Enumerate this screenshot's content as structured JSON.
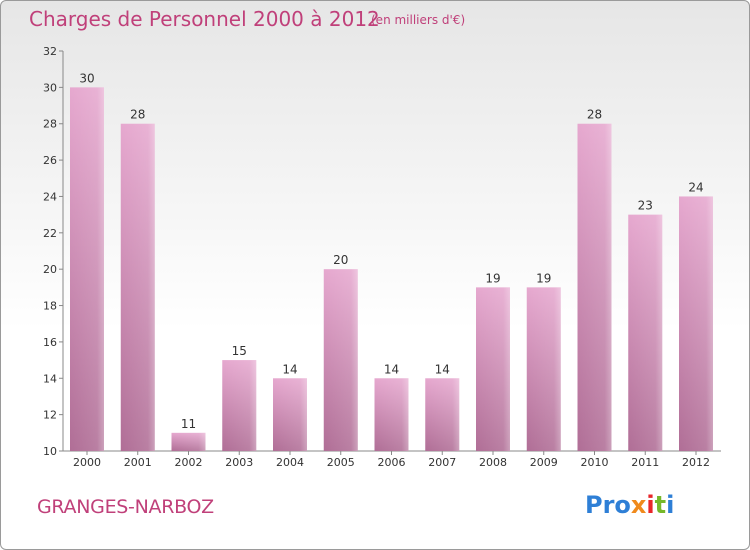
{
  "header": {
    "title": "Charges de Personnel 2000 à 2012",
    "subtitle": "(en milliers d'€)"
  },
  "footer": {
    "commune": "GRANGES-NARBOZ",
    "logo": "Proxiti",
    "logo_parts": [
      "Pro",
      "x",
      "i",
      "t",
      "i"
    ]
  },
  "colors": {
    "bar_top": "#e6a8cf",
    "bar_bottom": "#b06e96",
    "accent": "#c0407a"
  },
  "chart_data": {
    "type": "bar",
    "categories": [
      "2000",
      "2001",
      "2002",
      "2003",
      "2004",
      "2005",
      "2006",
      "2007",
      "2008",
      "2009",
      "2010",
      "2011",
      "2012"
    ],
    "values": [
      30,
      28,
      11,
      15,
      14,
      20,
      14,
      14,
      19,
      19,
      28,
      23,
      24
    ],
    "title": "Charges de Personnel 2000 à 2012",
    "subtitle": "(en milliers d'€)",
    "ylim": [
      10,
      32
    ],
    "yticks": [
      10,
      12,
      14,
      16,
      18,
      20,
      22,
      24,
      26,
      28,
      30,
      32
    ],
    "grid": false,
    "legend": "none"
  }
}
